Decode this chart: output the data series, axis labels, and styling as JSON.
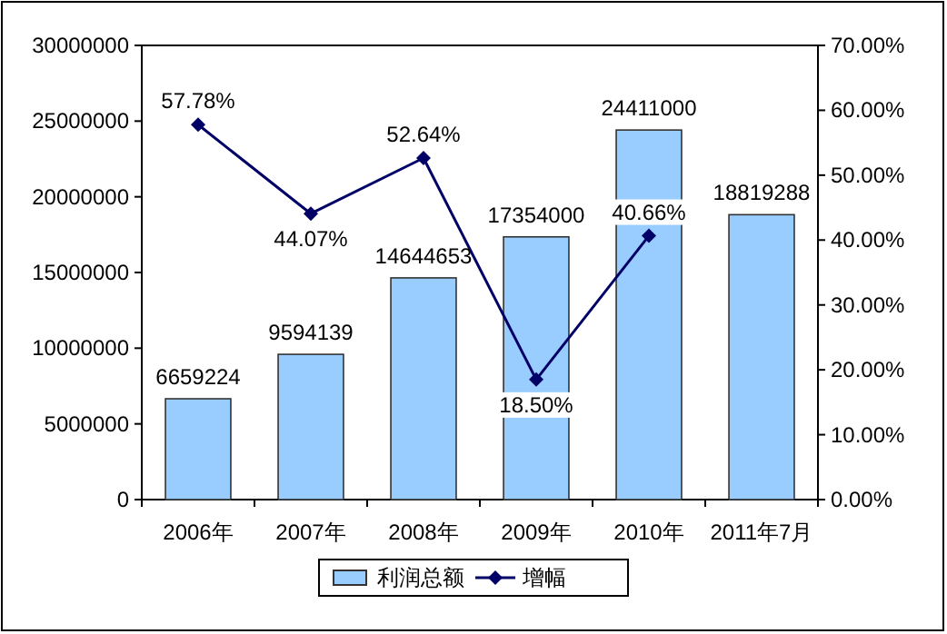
{
  "chart_data": {
    "type": "bar",
    "categories": [
      "2006年",
      "2007年",
      "2008年",
      "2009年",
      "2010年",
      "2011年7月"
    ],
    "series": [
      {
        "name": "利润总额",
        "color": "#99ccff",
        "values": [
          6659224,
          9594139,
          14644653,
          17354000,
          24411000,
          18819288
        ],
        "value_labels": [
          "6659224",
          "9594139",
          "14644653",
          "17354000",
          "24411000",
          "18819288"
        ]
      },
      {
        "name": "增幅",
        "type": "line",
        "axis": "y2",
        "color": "#000066",
        "values": [
          57.78,
          44.07,
          52.64,
          18.5,
          40.66,
          null
        ],
        "value_labels": [
          "57.78%",
          "44.07%",
          "52.64%",
          "18.50%",
          "40.66%",
          null
        ]
      }
    ],
    "ylim": [
      0,
      30000000
    ],
    "yticks": [
      0,
      5000000,
      10000000,
      15000000,
      20000000,
      25000000,
      30000000
    ],
    "y2lim": [
      0,
      70
    ],
    "y2ticks": [
      {
        "value": 0,
        "label": "0.00%"
      },
      {
        "value": 10,
        "label": "10.00%"
      },
      {
        "value": 20,
        "label": "20.00%"
      },
      {
        "value": 30,
        "label": "30.00%"
      },
      {
        "value": 40,
        "label": "40.00%"
      },
      {
        "value": 50,
        "label": "50.00%"
      },
      {
        "value": 60,
        "label": "60.00%"
      },
      {
        "value": 70,
        "label": "70.00%"
      }
    ],
    "marker": "diamond",
    "legend": "bottom",
    "grid": false
  }
}
